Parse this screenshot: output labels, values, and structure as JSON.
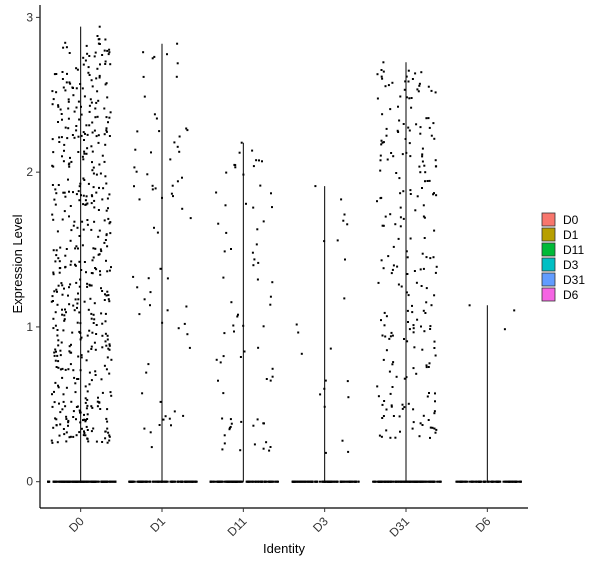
{
  "chart_data": {
    "type": "scatter",
    "subtype": "violin-jitter",
    "title": "",
    "xlabel": "Identity",
    "ylabel": "Expression Level",
    "ylim": [
      -0.17,
      3.08
    ],
    "yticks": [
      0,
      1,
      2,
      3
    ],
    "categories": [
      "D0",
      "D1",
      "D11",
      "D3",
      "D31",
      "D6"
    ],
    "legend": {
      "position": "right",
      "entries": [
        {
          "name": "D0",
          "color": "#F8766D"
        },
        {
          "name": "D1",
          "color": "#B79F00"
        },
        {
          "name": "D11",
          "color": "#00BA38"
        },
        {
          "name": "D3",
          "color": "#00BFC4"
        },
        {
          "name": "D31",
          "color": "#619CFF"
        },
        {
          "name": "D6",
          "color": "#F564E3"
        }
      ]
    },
    "groups": [
      {
        "name": "D0",
        "max": 2.94,
        "nonzero": 520,
        "zeros": 150,
        "range": [
          0.25,
          2.94
        ]
      },
      {
        "name": "D1",
        "max": 2.83,
        "nonzero": 70,
        "zeros": 120,
        "range": [
          0.2,
          2.83
        ]
      },
      {
        "name": "D11",
        "max": 2.19,
        "nonzero": 75,
        "zeros": 120,
        "range": [
          0.2,
          2.19
        ]
      },
      {
        "name": "D3",
        "max": 1.91,
        "nonzero": 22,
        "zeros": 120,
        "range": [
          0.17,
          1.91
        ]
      },
      {
        "name": "D31",
        "max": 2.71,
        "nonzero": 230,
        "zeros": 130,
        "range": [
          0.28,
          2.71
        ]
      },
      {
        "name": "D6",
        "max": 1.14,
        "nonzero": 3,
        "zeros": 100,
        "range": [
          0.95,
          1.14
        ]
      }
    ]
  }
}
